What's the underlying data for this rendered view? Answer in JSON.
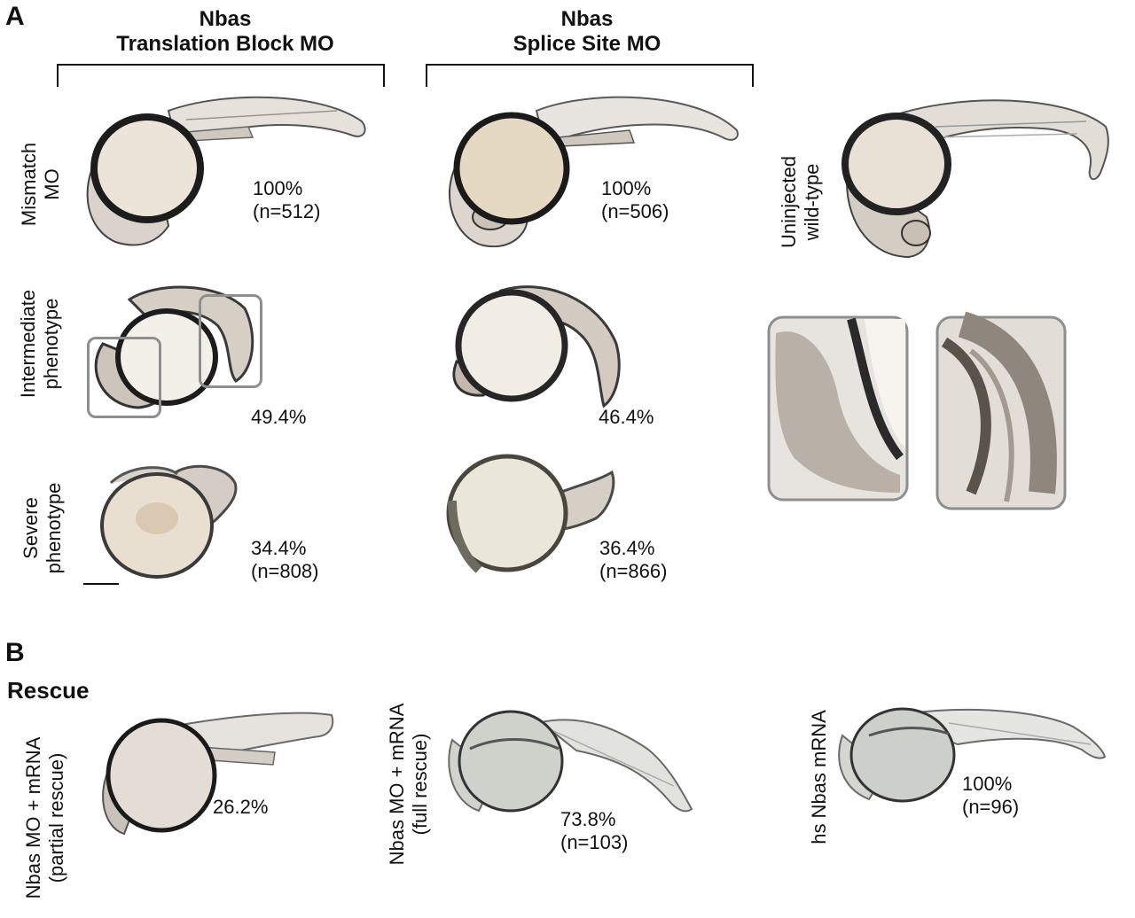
{
  "panel_a": {
    "letter": "A",
    "columns": [
      {
        "title": "Nbas\nTranslation Block MO"
      },
      {
        "title": "Nbas\nSplice Site MO"
      }
    ],
    "row_labels": {
      "mismatch": "Mismatch\nMO",
      "intermediate": "Intermediate\nphenotype",
      "severe": "Severe\nphenotype",
      "uninjected": "Uninjected\nwild-type"
    },
    "values": {
      "tb_mismatch": "100%\n(n=512)",
      "ss_mismatch": "100%\n(n=506)",
      "tb_intermediate": "49.4%",
      "ss_intermediate": "46.4%",
      "tb_severe": "34.4%\n(n=808)",
      "ss_severe": "36.4%\n(n=866)"
    }
  },
  "panel_b": {
    "letter": "B",
    "heading": "Rescue",
    "labels": {
      "partial": "Nbas MO + mRNA\n(partial rescue)",
      "full": "Nbas MO + mRNA\n(full rescue)",
      "hs": "hs Nbas mRNA"
    },
    "values": {
      "partial": "26.2%",
      "full": "73.8%\n(n=103)",
      "hs": "100%\n(n=96)"
    }
  }
}
